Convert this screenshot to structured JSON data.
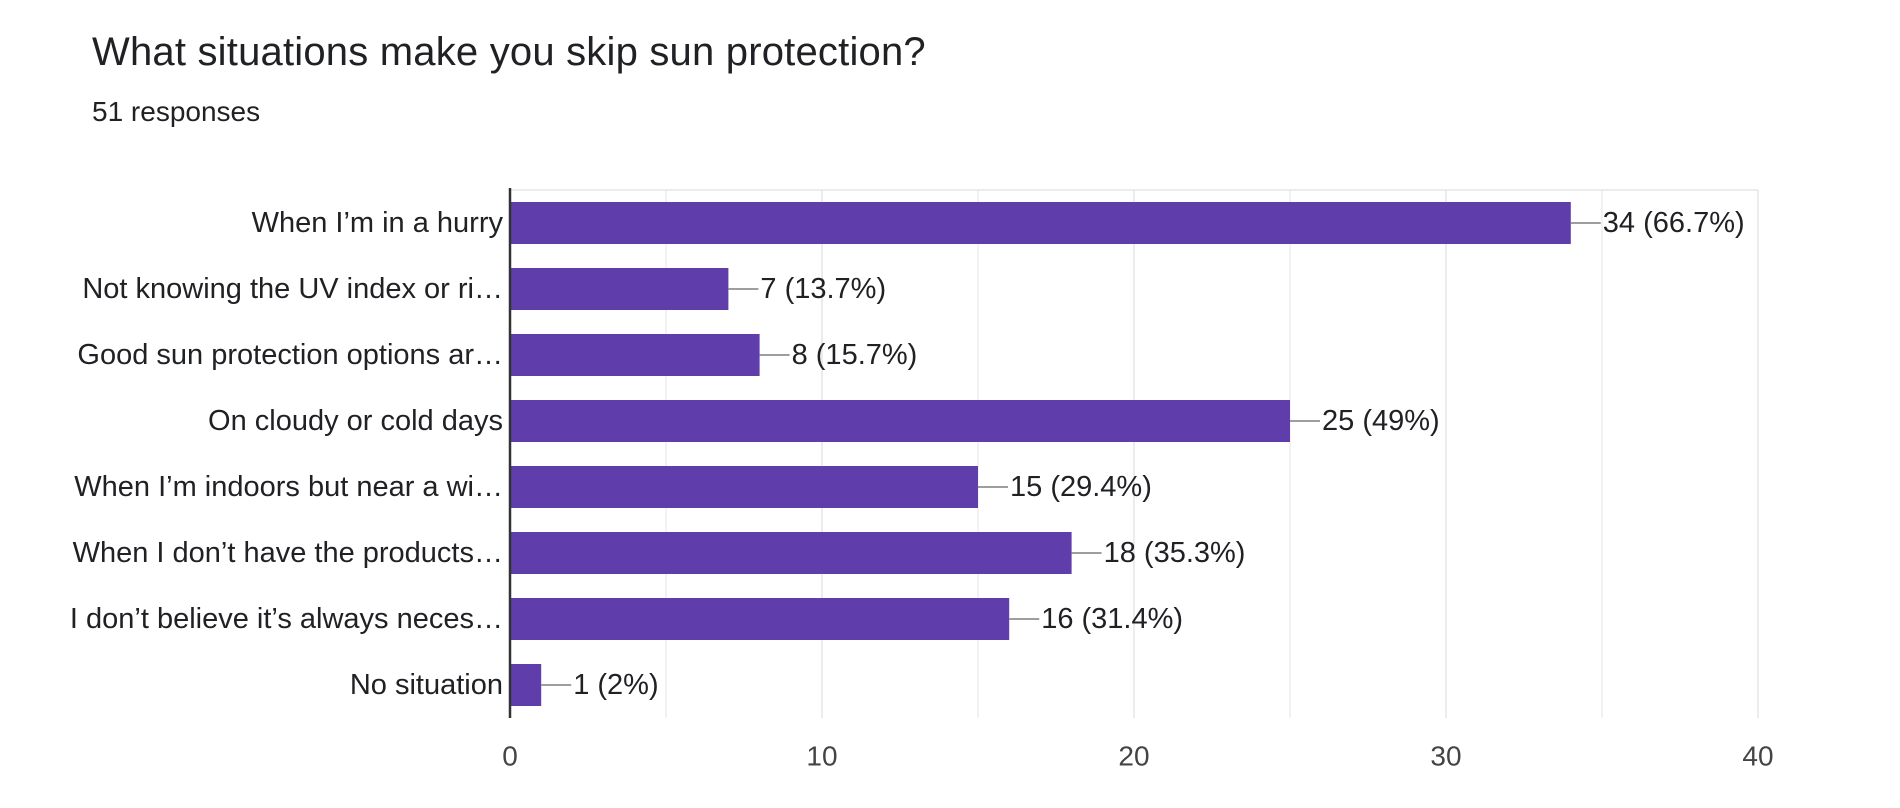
{
  "title": "What situations make you skip sun protection?",
  "subtitle": "51 responses",
  "colors": {
    "bar": "#5f3dab",
    "grid": "#e6e6e6",
    "axis": "#333333",
    "leader": "#9e9e9e"
  },
  "chart_data": {
    "type": "bar",
    "orientation": "horizontal",
    "title": "What situations make you skip sun protection?",
    "subtitle": "51 responses",
    "categories": [
      "When I’m in a hurry",
      "Not knowing the UV index or ri…",
      "Good sun protection options ar…",
      "On cloudy or cold days",
      "When I’m indoors but near a wi…",
      "When I don’t have the products…",
      "I don’t believe it’s always neces…",
      "No situation"
    ],
    "values": [
      34,
      7,
      8,
      25,
      15,
      18,
      16,
      1
    ],
    "value_labels": [
      "34 (66.7%)",
      "7 (13.7%)",
      "8 (15.7%)",
      "25 (49%)",
      "15 (29.4%)",
      "18 (35.3%)",
      "16 (31.4%)",
      "1 (2%)"
    ],
    "xlim": [
      0,
      40
    ],
    "xticks": [
      0,
      10,
      20,
      30,
      40
    ],
    "grid": true,
    "xlabel": "",
    "ylabel": ""
  }
}
